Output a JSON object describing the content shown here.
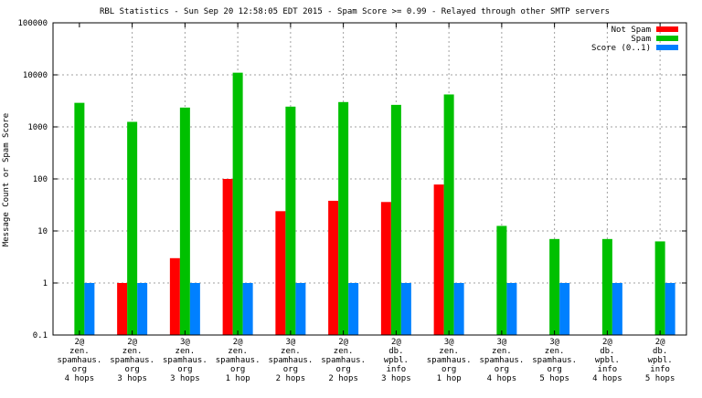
{
  "chart_data": {
    "type": "bar",
    "title": "RBL Statistics - Sun Sep 20 12:58:05 EDT 2015 - Spam Score >= 0.99 - Relayed through other SMTP servers",
    "ylabel": "Message Count or Spam Score",
    "xlabel": "",
    "yscale": "log",
    "ylim": [
      0.1,
      100000
    ],
    "yticks": [
      "0.1",
      "1",
      "10",
      "100",
      "1000",
      "10000",
      "100000"
    ],
    "grid": true,
    "legend_position": "top-right",
    "categories": [
      [
        "2@",
        "zen.",
        "spamhaus.",
        "org",
        "4 hops"
      ],
      [
        "2@",
        "zen.",
        "spamhaus.",
        "org",
        "3 hops"
      ],
      [
        "3@",
        "zen.",
        "spamhaus.",
        "org",
        "3 hops"
      ],
      [
        "2@",
        "zen.",
        "spamhaus.",
        "org",
        "1 hop"
      ],
      [
        "3@",
        "zen.",
        "spamhaus.",
        "org",
        "2 hops"
      ],
      [
        "2@",
        "zen.",
        "spamhaus.",
        "org",
        "2 hops"
      ],
      [
        "2@",
        "db.",
        "wpbl.",
        "info",
        "3 hops"
      ],
      [
        "3@",
        "zen.",
        "spamhaus.",
        "org",
        "1 hop"
      ],
      [
        "3@",
        "zen.",
        "spamhaus.",
        "org",
        "4 hops"
      ],
      [
        "3@",
        "zen.",
        "spamhaus.",
        "org",
        "5 hops"
      ],
      [
        "2@",
        "db.",
        "wpbl.",
        "info",
        "4 hops"
      ],
      [
        "2@",
        "db.",
        "wpbl.",
        "info",
        "5 hops"
      ]
    ],
    "series": [
      {
        "name": "Not Spam",
        "color": "#ff0000",
        "values": [
          null,
          1,
          3,
          100,
          24,
          38,
          36,
          78,
          null,
          null,
          null,
          null
        ]
      },
      {
        "name": "Spam",
        "color": "#00c000",
        "values": [
          2900,
          1250,
          2350,
          11000,
          2450,
          3000,
          2650,
          4200,
          12.5,
          7,
          7,
          6.3
        ]
      },
      {
        "name": "Score (0..1)",
        "color": "#0080ff",
        "values": [
          1,
          1,
          1,
          1,
          1,
          1,
          1,
          1,
          1,
          1,
          1,
          1
        ]
      }
    ]
  }
}
